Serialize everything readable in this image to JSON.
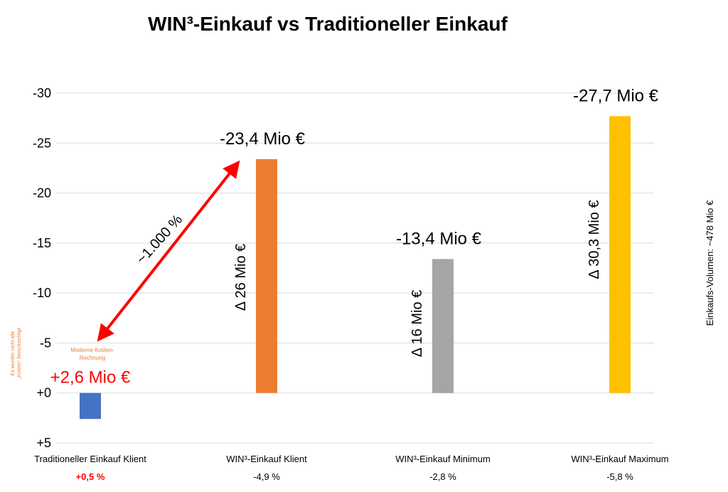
{
  "chart_data": {
    "type": "bar",
    "title": "WIN³-Einkauf vs Traditioneller Einkauf",
    "categories": [
      "Traditioneller Einkauf Klient",
      "WIN³-Einkauf Klient",
      "WIN³-Einkauf Minimum",
      "WIN³-Einkauf Maximum"
    ],
    "values": [
      2.6,
      -23.4,
      -13.4,
      -27.7
    ],
    "ylim": [
      5,
      -30
    ],
    "yticks": [
      -30,
      -25,
      -20,
      -15,
      -10,
      -5,
      0,
      5
    ],
    "ytick_labels": [
      "-30",
      "-25",
      "-20",
      "-15",
      "-10",
      "-5",
      "+0",
      "+5"
    ],
    "y_inverted": true,
    "grid": true,
    "colors": [
      "#4472C4",
      "#ED7D31",
      "#A5A5A5",
      "#FFC000"
    ],
    "value_labels": [
      "+2,6 Mio €",
      "-23,4 Mio €",
      "-13,4 Mio €",
      "-27,7 Mio €"
    ],
    "value_label_colors": [
      "#FF0000",
      "#000000",
      "#000000",
      "#000000"
    ],
    "percent_labels": [
      "+0,5 %",
      "-4,9 %",
      "-2,8 %",
      "-5,8 %"
    ],
    "percent_label_colors": [
      "#FF0000",
      "#000000",
      "#000000",
      "#000000"
    ],
    "delta_labels": [
      "",
      "Δ  26 Mio €",
      "Δ  16 Mio €",
      "Δ  30,3 Mio €"
    ],
    "annotations": {
      "arrow_label": "~1.000 %",
      "arrow_color": "#FF0000",
      "cost_note": "Moderne Kosten-\nRechnung",
      "cost_note_color": "#ED7D31",
      "side_note": "Es wurden nicht alle\n„Kosten“ berücksichtigt",
      "side_note_color": "#ED7D31",
      "volume_label": "Einkaufs-Volumen:  ~478 Mio €"
    }
  }
}
